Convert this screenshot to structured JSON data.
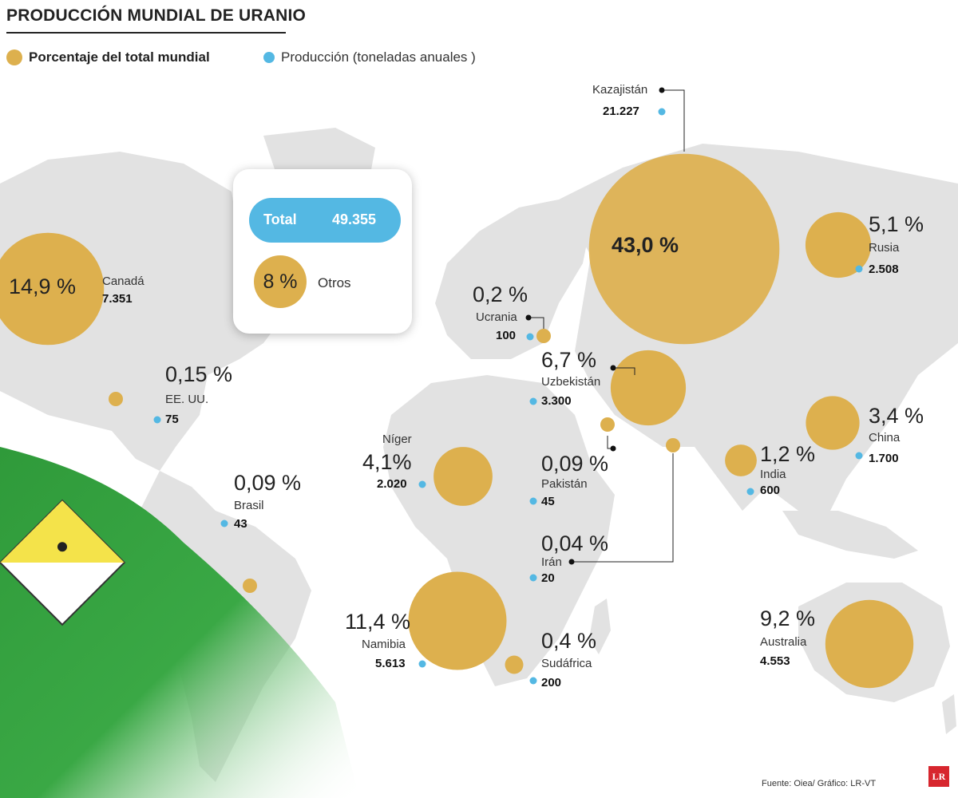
{
  "title": "PRODUCCIÓN MUNDIAL DE URANIO",
  "legend": {
    "percent_label": "Porcentaje del total mundial",
    "production_label": "Producción (toneladas anuales )",
    "percent_color": "#ddb04e",
    "production_color": "#54b8e3"
  },
  "total": {
    "label": "Total",
    "value": "49.355"
  },
  "others": {
    "pct": "8 %",
    "name": "Otros",
    "percent": 8.0
  },
  "chart_data": {
    "type": "bubble-map",
    "title": "PRODUCCIÓN MUNDIAL DE URANIO",
    "size_encodes": "Porcentaje del total mundial",
    "units": "toneladas anuales",
    "total_production": 49355,
    "countries": [
      {
        "name": "Kazajistán",
        "pct_label": "43,0 %",
        "percent": 43.0,
        "prod_label": "21.227",
        "production": 21227
      },
      {
        "name": "Canadá",
        "pct_label": "14,9 %",
        "percent": 14.9,
        "prod_label": "7.351",
        "production": 7351
      },
      {
        "name": "Namibia",
        "pct_label": "11,4 %",
        "percent": 11.4,
        "prod_label": "5.613",
        "production": 5613
      },
      {
        "name": "Australia",
        "pct_label": "9,2 %",
        "percent": 9.2,
        "prod_label": "4.553",
        "production": 4553
      },
      {
        "name": "Uzbekistán",
        "pct_label": "6,7 %",
        "percent": 6.7,
        "prod_label": "3.300",
        "production": 3300
      },
      {
        "name": "Rusia",
        "pct_label": "5,1 %",
        "percent": 5.1,
        "prod_label": "2.508",
        "production": 2508
      },
      {
        "name": "Níger",
        "pct_label": "4,1%",
        "percent": 4.1,
        "prod_label": "2.020",
        "production": 2020
      },
      {
        "name": "China",
        "pct_label": "3,4 %",
        "percent": 3.4,
        "prod_label": "1.700",
        "production": 1700
      },
      {
        "name": "India",
        "pct_label": "1,2 %",
        "percent": 1.2,
        "prod_label": "600",
        "production": 600
      },
      {
        "name": "Sudáfrica",
        "pct_label": "0,4 %",
        "percent": 0.4,
        "prod_label": "200",
        "production": 200
      },
      {
        "name": "Ucrania",
        "pct_label": "0,2 %",
        "percent": 0.2,
        "prod_label": "100",
        "production": 100
      },
      {
        "name": "EE. UU.",
        "pct_label": "0,15 %",
        "percent": 0.15,
        "prod_label": "75",
        "production": 75
      },
      {
        "name": "Brasil",
        "pct_label": "0,09 %",
        "percent": 0.09,
        "prod_label": "43",
        "production": 43
      },
      {
        "name": "Pakistán",
        "pct_label": "0,09 %",
        "percent": 0.09,
        "prod_label": "45",
        "production": 45
      },
      {
        "name": "Irán",
        "pct_label": "0,04 %",
        "percent": 0.04,
        "prod_label": "20",
        "production": 20
      }
    ]
  },
  "source": "Fuente: Oiea/ Gráfico: LR-VT",
  "logo": "LR"
}
